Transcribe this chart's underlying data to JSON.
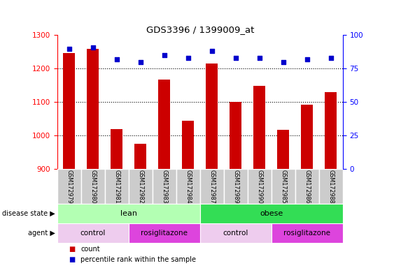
{
  "title": "GDS3396 / 1399009_at",
  "samples": [
    "GSM172979",
    "GSM172980",
    "GSM172981",
    "GSM172982",
    "GSM172983",
    "GSM172984",
    "GSM172987",
    "GSM172989",
    "GSM172990",
    "GSM172985",
    "GSM172986",
    "GSM172988"
  ],
  "counts": [
    1247,
    1258,
    1020,
    975,
    1168,
    1045,
    1215,
    1100,
    1148,
    1018,
    1093,
    1130
  ],
  "percentiles": [
    90,
    91,
    82,
    80,
    85,
    83,
    88,
    83,
    83,
    80,
    82,
    83
  ],
  "ylim_left": [
    900,
    1300
  ],
  "ylim_right": [
    0,
    100
  ],
  "yticks_left": [
    900,
    1000,
    1100,
    1200,
    1300
  ],
  "yticks_right": [
    0,
    25,
    50,
    75,
    100
  ],
  "bar_color": "#cc0000",
  "dot_color": "#0000cc",
  "bar_width": 0.5,
  "gridlines": [
    1000,
    1100,
    1200
  ],
  "disease_state_groups": [
    {
      "label": "lean",
      "start": 0,
      "end": 6,
      "color": "#b3ffb3"
    },
    {
      "label": "obese",
      "start": 6,
      "end": 12,
      "color": "#33dd55"
    }
  ],
  "agent_groups": [
    {
      "label": "control",
      "start": 0,
      "end": 3,
      "color": "#eeccee"
    },
    {
      "label": "rosiglitazone",
      "start": 3,
      "end": 6,
      "color": "#dd44dd"
    },
    {
      "label": "control",
      "start": 6,
      "end": 9,
      "color": "#eeccee"
    },
    {
      "label": "rosiglitazone",
      "start": 9,
      "end": 12,
      "color": "#dd44dd"
    }
  ],
  "legend": [
    {
      "label": "count",
      "color": "#cc0000"
    },
    {
      "label": "percentile rank within the sample",
      "color": "#0000cc"
    }
  ],
  "label_bg_color": "#cccccc",
  "label_edge_color": "#ffffff"
}
